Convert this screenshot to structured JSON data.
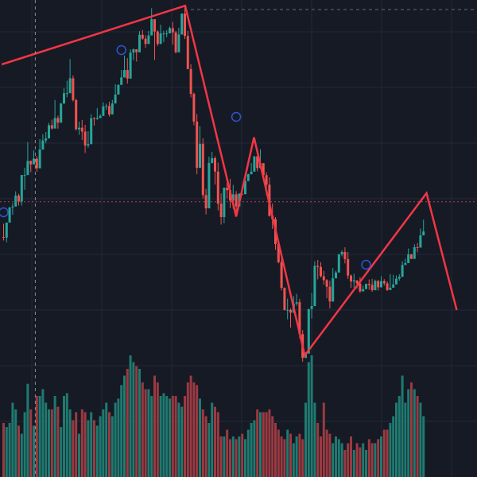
{
  "colors": {
    "background": "#161a25",
    "grid": "#232838",
    "bullish": "#26a69a",
    "bearish": "#ef5350",
    "volume_bullish": "#1f7a70",
    "volume_bearish": "#9b3a41",
    "zigzag": "#f23645",
    "marker": "#2f54d6",
    "crosshair_vertical": "#9aa0ad",
    "crosshair_horizontal": "#c24a56"
  },
  "chart_data": {
    "type": "candlestick",
    "title": "",
    "xlabel": "",
    "ylabel": "",
    "grid": true,
    "legend": "none",
    "ylim": [
      0,
      100
    ],
    "volume_ylim": [
      0,
      100
    ],
    "candles": [
      [
        50.33,
        50.19,
        49.59,
        53.09,
        40
      ],
      [
        50.19,
        53.34,
        49.2,
        53.34,
        37
      ],
      [
        53.34,
        56.51,
        53.34,
        56.61,
        40
      ],
      [
        56.51,
        56.7,
        54.96,
        57.43,
        55
      ],
      [
        56.7,
        58.99,
        56.7,
        59.9,
        50
      ],
      [
        58.99,
        57.77,
        56.91,
        59.39,
        38
      ],
      [
        57.77,
        63.31,
        56.9,
        63.31,
        32
      ],
      [
        63.31,
        63.31,
        60.21,
        64.8,
        48
      ],
      [
        63.31,
        66.26,
        63.31,
        70.2,
        69
      ],
      [
        66.26,
        65.54,
        63.92,
        66.34,
        50
      ],
      [
        65.54,
        66.74,
        65.54,
        68.47,
        38
      ],
      [
        66.74,
        64.72,
        63.99,
        67.26,
        60
      ],
      [
        64.72,
        68.64,
        64.72,
        70.86,
        60
      ],
      [
        68.64,
        70.56,
        68.64,
        71.87,
        65
      ],
      [
        70.56,
        70.98,
        69.96,
        72.32,
        55
      ],
      [
        70.98,
        73.76,
        70.98,
        74.22,
        50
      ],
      [
        73.76,
        73.06,
        72.84,
        74.91,
        50
      ],
      [
        73.06,
        75.27,
        73.06,
        79.05,
        60
      ],
      [
        75.27,
        74.28,
        73.03,
        75.76,
        52
      ],
      [
        74.28,
        78.28,
        74.28,
        78.46,
        37
      ],
      [
        78.28,
        80.46,
        78.28,
        81.52,
        60
      ],
      [
        80.46,
        80.47,
        79.62,
        83.07,
        62
      ],
      [
        80.47,
        83.6,
        80.47,
        87.6,
        50
      ],
      [
        83.6,
        79.03,
        78.7,
        84.18,
        42
      ],
      [
        79.03,
        72.9,
        72.66,
        79.29,
        48
      ],
      [
        72.9,
        73.23,
        71.76,
        74.51,
        32
      ],
      [
        73.23,
        72.42,
        70.66,
        74.84,
        50
      ],
      [
        72.42,
        69.49,
        67.93,
        73.83,
        48
      ],
      [
        69.49,
        69.78,
        69.03,
        72.5,
        42
      ],
      [
        69.78,
        75.2,
        69.78,
        76.05,
        48
      ],
      [
        75.2,
        75.07,
        73.68,
        75.44,
        42
      ],
      [
        75.07,
        75.27,
        74.88,
        77.35,
        38
      ],
      [
        75.27,
        75.7,
        75.26,
        76.05,
        45
      ],
      [
        75.7,
        77.7,
        75.7,
        78.55,
        50
      ],
      [
        77.7,
        77.77,
        76.96,
        78.25,
        55
      ],
      [
        77.77,
        76.01,
        75.56,
        78.69,
        48
      ],
      [
        76.01,
        78.31,
        76.01,
        79.04,
        45
      ],
      [
        78.31,
        80.18,
        78.31,
        82.34,
        55
      ],
      [
        80.18,
        82.21,
        80.18,
        82.28,
        58
      ],
      [
        82.21,
        83.77,
        82.21,
        85.33,
        68
      ],
      [
        83.77,
        85.32,
        83.77,
        88.36,
        75
      ],
      [
        85.32,
        83.52,
        82.47,
        87.81,
        80
      ],
      [
        83.52,
        88.98,
        83.52,
        89.65,
        90
      ],
      [
        88.98,
        89.66,
        87.38,
        89.84,
        85
      ],
      [
        89.66,
        89.05,
        87.09,
        89.7,
        82
      ],
      [
        89.05,
        92.71,
        89.05,
        93.48,
        80
      ],
      [
        92.71,
        91.89,
        91.66,
        93.72,
        70
      ],
      [
        91.89,
        90.78,
        89.99,
        92.62,
        65
      ],
      [
        90.78,
        92.57,
        90.78,
        93.51,
        65
      ],
      [
        92.57,
        95.98,
        92.57,
        98.27,
        60
      ],
      [
        95.98,
        93.4,
        87.45,
        95.98,
        75
      ],
      [
        93.4,
        90.78,
        90.36,
        93.66,
        70
      ],
      [
        90.78,
        92.98,
        90.78,
        94.84,
        60
      ],
      [
        92.98,
        92.98,
        91.17,
        93.55,
        62
      ],
      [
        92.98,
        93.02,
        92.17,
        93.69,
        60
      ],
      [
        93.02,
        94.1,
        93.02,
        94.41,
        58
      ],
      [
        94.1,
        93.2,
        90.65,
        95.4,
        60
      ],
      [
        93.2,
        89.03,
        88.82,
        93.55,
        60
      ],
      [
        89.03,
        92.77,
        89.03,
        94.18,
        55
      ],
      [
        92.77,
        97.15,
        92.77,
        97.19,
        52
      ],
      [
        97.15,
        92.47,
        91.81,
        98.57,
        60
      ],
      [
        92.47,
        85.52,
        85.48,
        93.53,
        70
      ],
      [
        85.52,
        80.32,
        79.58,
        86.56,
        75
      ],
      [
        80.32,
        74.52,
        73.75,
        80.6,
        70
      ],
      [
        74.52,
        64.8,
        63.48,
        76.07,
        68
      ],
      [
        64.8,
        69.86,
        64.8,
        73.54,
        58
      ],
      [
        69.86,
        59.11,
        58.36,
        71.0,
        50
      ],
      [
        59.11,
        56.32,
        55.05,
        60.42,
        45
      ],
      [
        56.32,
        65.85,
        56.32,
        67.17,
        40
      ],
      [
        65.85,
        66.85,
        65.71,
        68.18,
        55
      ],
      [
        66.85,
        64.04,
        61.3,
        67.26,
        52
      ],
      [
        64.04,
        57.29,
        55.9,
        65.89,
        48
      ],
      [
        57.29,
        54.5,
        52.91,
        59.47,
        30
      ],
      [
        54.5,
        60.65,
        53.19,
        60.65,
        30
      ],
      [
        60.65,
        60.13,
        58.4,
        61.95,
        35
      ],
      [
        60.13,
        57.94,
        56.37,
        62.51,
        28
      ],
      [
        57.94,
        59.26,
        56.28,
        61.22,
        30
      ],
      [
        59.26,
        56.73,
        55.6,
        59.93,
        28
      ],
      [
        56.73,
        59.38,
        56.73,
        59.51,
        30
      ],
      [
        59.38,
        59.29,
        59.23,
        59.29,
        32
      ],
      [
        59.29,
        62.05,
        59.29,
        62.56,
        28
      ],
      [
        62.05,
        63.47,
        62.05,
        63.58,
        35
      ],
      [
        63.47,
        64.02,
        63.47,
        65.81,
        40
      ],
      [
        64.02,
        67.23,
        64.02,
        67.24,
        42
      ],
      [
        67.23,
        64.76,
        64.08,
        67.3,
        50
      ],
      [
        64.76,
        65.79,
        64.76,
        68.7,
        48
      ],
      [
        65.79,
        63.28,
        63.02,
        65.79,
        48
      ],
      [
        63.28,
        61.28,
        59.12,
        63.87,
        48
      ],
      [
        61.28,
        54.73,
        54.58,
        62.81,
        50
      ],
      [
        54.73,
        54.06,
        51.99,
        57.32,
        45
      ],
      [
        54.06,
        48.84,
        47.63,
        54.5,
        40
      ],
      [
        48.84,
        45.04,
        44.8,
        49.15,
        35
      ],
      [
        45.04,
        39.65,
        39.1,
        46.69,
        30
      ],
      [
        39.65,
        34.99,
        34.94,
        39.78,
        28
      ],
      [
        34.99,
        35.04,
        33.05,
        37.39,
        35
      ],
      [
        35.04,
        34.46,
        31.32,
        35.34,
        32
      ],
      [
        34.46,
        36.37,
        34.46,
        37.92,
        25
      ],
      [
        36.37,
        36.64,
        35.9,
        38.4,
        30
      ],
      [
        36.64,
        29.96,
        29.07,
        37.36,
        32
      ],
      [
        29.96,
        24.97,
        24.14,
        30.8,
        28
      ],
      [
        24.97,
        25.89,
        24.97,
        26.12,
        55
      ],
      [
        25.89,
        35.22,
        25.89,
        35.24,
        85
      ],
      [
        35.22,
        35.83,
        33.22,
        38.6,
        90
      ],
      [
        35.83,
        44.27,
        35.83,
        45.23,
        55
      ],
      [
        44.27,
        44.05,
        41.43,
        45.49,
        40
      ],
      [
        44.05,
        42.09,
        41.83,
        45.02,
        30
      ],
      [
        42.09,
        41.27,
        40.33,
        43.24,
        55
      ],
      [
        41.27,
        39.89,
        37.49,
        41.49,
        35
      ],
      [
        39.89,
        36.79,
        35.34,
        41.13,
        32
      ],
      [
        36.79,
        41.65,
        36.79,
        43.81,
        25
      ],
      [
        41.65,
        42.87,
        41.65,
        43.26,
        30
      ],
      [
        42.87,
        46.68,
        42.87,
        46.77,
        28
      ],
      [
        46.68,
        47.18,
        46.26,
        47.56,
        25
      ],
      [
        47.18,
        45.69,
        44.78,
        48.16,
        20
      ],
      [
        45.69,
        42.23,
        41.53,
        47.15,
        25
      ],
      [
        42.23,
        40.99,
        39.65,
        42.44,
        30
      ],
      [
        40.99,
        41.23,
        39.68,
        42.6,
        20
      ],
      [
        41.23,
        40.57,
        39.53,
        40.91,
        25
      ],
      [
        40.57,
        38.92,
        38.58,
        41.87,
        22
      ],
      [
        38.92,
        39.39,
        38.87,
        40.13,
        25
      ],
      [
        39.39,
        40.48,
        39.39,
        40.55,
        20
      ],
      [
        40.48,
        40.28,
        39.24,
        41.4,
        28
      ],
      [
        40.28,
        39.15,
        38.83,
        41.53,
        25
      ],
      [
        39.15,
        41.11,
        39.15,
        41.38,
        25
      ],
      [
        41.11,
        39.76,
        39.08,
        41.3,
        28
      ],
      [
        39.76,
        41.06,
        39.76,
        42.11,
        30
      ],
      [
        41.06,
        40.6,
        40.12,
        41.47,
        35
      ],
      [
        40.6,
        39.2,
        39.02,
        41.01,
        35
      ],
      [
        39.2,
        39.69,
        39.2,
        42.53,
        40
      ],
      [
        39.69,
        40.38,
        39.69,
        42.38,
        45
      ],
      [
        40.38,
        41.56,
        40.38,
        42.23,
        55
      ],
      [
        41.56,
        41.96,
        41.15,
        42.51,
        60
      ],
      [
        41.96,
        44.45,
        41.96,
        45.25,
        75
      ],
      [
        44.45,
        44.84,
        44.44,
        45.76,
        55
      ],
      [
        44.84,
        46.69,
        44.84,
        47.9,
        65
      ],
      [
        46.69,
        45.73,
        45.71,
        46.76,
        70
      ],
      [
        45.73,
        48.17,
        45.73,
        48.8,
        65
      ],
      [
        48.17,
        48.08,
        47.1,
        49.03,
        60
      ],
      [
        48.08,
        50.65,
        48.08,
        52.08,
        55
      ],
      [
        50.65,
        51.49,
        50.65,
        53.94,
        45
      ]
    ],
    "zigzag": [
      [
        -0.6,
        86.5,
        0.0,
        0.0
      ],
      [
        60.1,
        98.8,
        0.0,
        0.0
      ],
      [
        77.0,
        54.6,
        0.0,
        0.0
      ],
      [
        82.9,
        71.2,
        0.0,
        0.0
      ],
      [
        99.7,
        25.5,
        0.0,
        0.0
      ],
      [
        140.0,
        59.5,
        0.0,
        0.0
      ],
      [
        150.0,
        35.0,
        0.0,
        0.0
      ]
    ],
    "markers": [
      [
        0.0,
        55.5,
        0.0,
        0.0
      ],
      [
        39.0,
        89.5,
        0.0,
        0.0
      ],
      [
        77.0,
        75.5,
        0.0,
        0.0
      ],
      [
        120.0,
        44.5,
        0.0,
        0.0
      ]
    ],
    "crosshair": {
      "x_index": 10.5,
      "y_value": 57.7
    }
  }
}
